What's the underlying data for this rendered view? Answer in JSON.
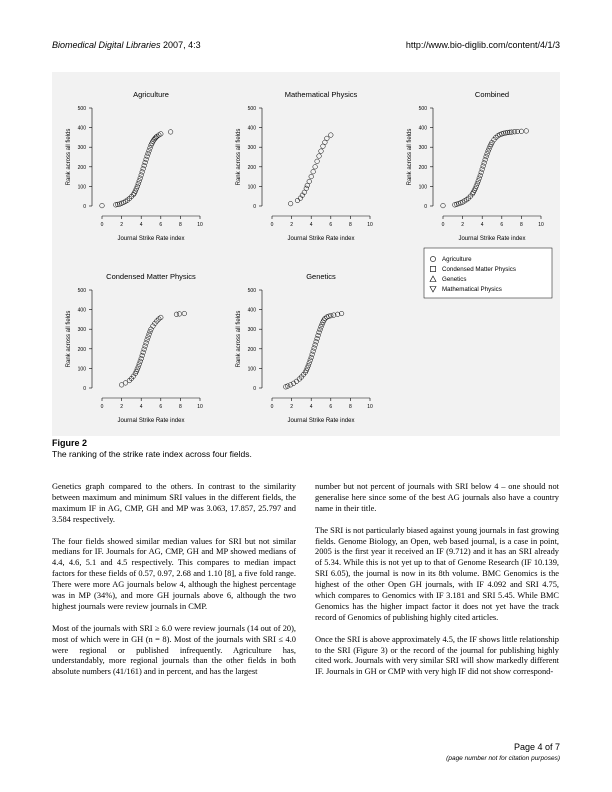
{
  "header": {
    "journal_prefix": "Biomedical Digital Libraries",
    "journal_suffix": " 2007, 4:3",
    "url": "http://www.bio-diglib.com/content/4/1/3"
  },
  "figure": {
    "label": "Figure 2",
    "caption": "The ranking of the strike rate index across four fields."
  },
  "chart_data": [
    {
      "type": "scatter",
      "title": "Agriculture",
      "xlabel": "Journal Strike Rate index",
      "ylabel": "Rank across all fields",
      "xlim": [
        0,
        10
      ],
      "ylim": [
        0,
        500
      ],
      "xticks": [
        0,
        2,
        4,
        6,
        8,
        10
      ],
      "yticks": [
        0,
        100,
        200,
        300,
        400,
        500
      ],
      "marker": "circle",
      "x": [
        0.0,
        1.4,
        1.6,
        1.8,
        2.0,
        2.2,
        2.4,
        2.6,
        2.8,
        3.0,
        3.2,
        3.3,
        3.4,
        3.5,
        3.6,
        3.7,
        3.8,
        3.9,
        4.0,
        4.1,
        4.2,
        4.3,
        4.4,
        4.5,
        4.6,
        4.7,
        4.8,
        4.9,
        5.0,
        5.1,
        5.2,
        5.3,
        5.4,
        5.5,
        5.6,
        5.8,
        6.0,
        7.0
      ],
      "y": [
        2,
        6,
        8,
        10,
        14,
        18,
        24,
        30,
        38,
        48,
        58,
        66,
        76,
        88,
        100,
        114,
        128,
        142,
        158,
        174,
        190,
        206,
        222,
        238,
        254,
        268,
        282,
        296,
        310,
        320,
        330,
        338,
        344,
        350,
        355,
        362,
        368,
        378
      ]
    },
    {
      "type": "scatter",
      "title": "Mathematical Physics",
      "xlabel": "Journal Strike Rate index",
      "ylabel": "Rank across all fields",
      "xlim": [
        0,
        10
      ],
      "ylim": [
        0,
        500
      ],
      "xticks": [
        0,
        2,
        4,
        6,
        8,
        10
      ],
      "yticks": [
        0,
        100,
        200,
        300,
        400,
        500
      ],
      "marker": "circle",
      "x": [
        1.9,
        2.6,
        2.9,
        3.1,
        3.3,
        3.5,
        3.6,
        3.8,
        4.0,
        4.2,
        4.4,
        4.6,
        4.8,
        5.0,
        5.2,
        5.4,
        5.6,
        6.0
      ],
      "y": [
        12,
        28,
        40,
        55,
        70,
        90,
        105,
        125,
        150,
        175,
        200,
        228,
        255,
        280,
        305,
        325,
        345,
        362
      ]
    },
    {
      "type": "scatter",
      "title": "Combined",
      "xlabel": "Journal Strike Rate index",
      "ylabel": "Rank across all fields",
      "xlim": [
        0,
        10
      ],
      "ylim": [
        0,
        500
      ],
      "xticks": [
        0,
        2,
        4,
        6,
        8,
        10
      ],
      "yticks": [
        0,
        100,
        200,
        300,
        400,
        500
      ],
      "marker": "circle",
      "x": [
        0.0,
        1.2,
        1.4,
        1.6,
        1.8,
        2.0,
        2.2,
        2.4,
        2.6,
        2.8,
        3.0,
        3.1,
        3.2,
        3.3,
        3.4,
        3.5,
        3.6,
        3.7,
        3.8,
        3.9,
        4.0,
        4.1,
        4.2,
        4.3,
        4.4,
        4.5,
        4.6,
        4.7,
        4.8,
        4.9,
        5.0,
        5.2,
        5.4,
        5.6,
        5.8,
        6.0,
        6.2,
        6.4,
        6.6,
        6.8,
        7.0,
        7.3,
        7.6,
        8.0,
        8.5
      ],
      "y": [
        2,
        6,
        9,
        12,
        16,
        20,
        26,
        32,
        40,
        50,
        62,
        70,
        80,
        90,
        102,
        115,
        128,
        142,
        156,
        172,
        188,
        204,
        220,
        236,
        252,
        266,
        280,
        292,
        304,
        314,
        324,
        338,
        350,
        358,
        364,
        368,
        371,
        373,
        375,
        376,
        377,
        379,
        380,
        381,
        383
      ]
    },
    {
      "type": "scatter",
      "title": "Condensed Matter Physics",
      "xlabel": "Journal Strike Rate index",
      "ylabel": "Rank across all fields",
      "xlim": [
        0,
        10
      ],
      "ylim": [
        0,
        500
      ],
      "xticks": [
        0,
        2,
        4,
        6,
        8,
        10
      ],
      "yticks": [
        0,
        100,
        200,
        300,
        400,
        500
      ],
      "marker": "circle",
      "x": [
        2.0,
        2.4,
        2.8,
        3.0,
        3.2,
        3.4,
        3.5,
        3.6,
        3.7,
        3.8,
        3.9,
        4.0,
        4.1,
        4.2,
        4.3,
        4.4,
        4.5,
        4.6,
        4.7,
        4.8,
        4.9,
        5.0,
        5.2,
        5.4,
        5.6,
        5.8,
        6.0,
        7.6,
        7.9,
        8.4
      ],
      "y": [
        16,
        26,
        38,
        48,
        60,
        74,
        84,
        96,
        108,
        122,
        136,
        150,
        166,
        182,
        198,
        214,
        230,
        246,
        260,
        274,
        288,
        300,
        316,
        330,
        342,
        352,
        360,
        376,
        378,
        380
      ]
    },
    {
      "type": "scatter",
      "title": "Genetics",
      "xlabel": "Journal Strike Rate index",
      "ylabel": "Rank across all fields",
      "xlim": [
        0,
        10
      ],
      "ylim": [
        0,
        500
      ],
      "xticks": [
        0,
        2,
        4,
        6,
        8,
        10
      ],
      "yticks": [
        0,
        100,
        200,
        300,
        400,
        500
      ],
      "marker": "circle",
      "x": [
        1.4,
        1.6,
        1.9,
        2.2,
        2.5,
        2.8,
        3.0,
        3.2,
        3.4,
        3.5,
        3.6,
        3.7,
        3.8,
        3.9,
        4.0,
        4.1,
        4.2,
        4.3,
        4.4,
        4.5,
        4.6,
        4.7,
        4.8,
        4.9,
        5.0,
        5.1,
        5.2,
        5.3,
        5.4,
        5.6,
        5.8,
        6.0,
        6.3,
        6.7,
        7.1
      ],
      "y": [
        6,
        10,
        16,
        24,
        34,
        46,
        56,
        68,
        80,
        90,
        102,
        114,
        128,
        142,
        156,
        172,
        188,
        204,
        220,
        236,
        252,
        268,
        284,
        298,
        312,
        324,
        336,
        346,
        354,
        362,
        366,
        369,
        372,
        376,
        380
      ]
    }
  ],
  "legend": {
    "items": [
      {
        "marker": "circle",
        "label": "Agriculture"
      },
      {
        "marker": "square",
        "label": "Condensed Matter Physics"
      },
      {
        "marker": "triangle-up",
        "label": "Genetics"
      },
      {
        "marker": "triangle-down",
        "label": "Mathematical Physics"
      }
    ]
  },
  "left_paragraphs": [
    "Genetics graph compared to the others. In contrast to the similarity between maximum and minimum SRI values in the different fields, the maximum IF in AG, CMP, GH and MP was 3.063, 17.857, 25.797 and 3.584 respectively.",
    "The four fields showed similar median values for SRI but not similar medians for IF. Journals for AG, CMP, GH and MP showed medians of 4.4, 4.6, 5.1 and 4.5 respectively. This compares to median impact factors for these fields of 0.57, 0.97, 2.68 and 1.10 [8], a five fold range. There were more AG journals below 4, although the highest percentage was in MP (34%), and more GH journals above 6, although the two highest journals were review journals in CMP.",
    "Most of the journals with SRI ≥ 6.0 were review journals (14 out of 20), most of which were in GH (n = 8). Most of the journals with SRI ≤ 4.0 were regional or published infrequently. Agriculture has, understandably, more regional journals than the other fields in both absolute numbers (41/161) and in percent, and has the largest"
  ],
  "right_paragraphs": [
    "number but not percent of journals with SRI below 4 – one should not generalise here since some of the best AG journals also have a country name in their title.",
    "The SRI is not particularly biased against young journals in fast growing fields. Genome Biology, an Open, web based journal, is a case in point, 2005 is the first year it received an IF (9.712) and it has an SRI already of 5.34. While this is not yet up to that of Genome Research (IF 10.139, SRI 6.05), the journal is now in its 8th volume. BMC Genomics is the highest of the other Open GH journals, with IF 4.092 and SRI 4.75, which compares to Genomics with IF 3.181 and SRI 5.45. While BMC Genomics has the higher impact factor it does not yet have the track record of Genomics of publishing highly cited articles.",
    "Once the SRI is above approximately 4.5, the IF shows little relationship to the SRI (Figure 3) or the record of the journal for publishing highly cited work. Journals with very similar SRI will show markedly different IF. Journals in GH or CMP with very high IF did not show correspond-"
  ],
  "footer": {
    "page": "Page 4 of 7",
    "note": "(page number not for citation purposes)"
  }
}
